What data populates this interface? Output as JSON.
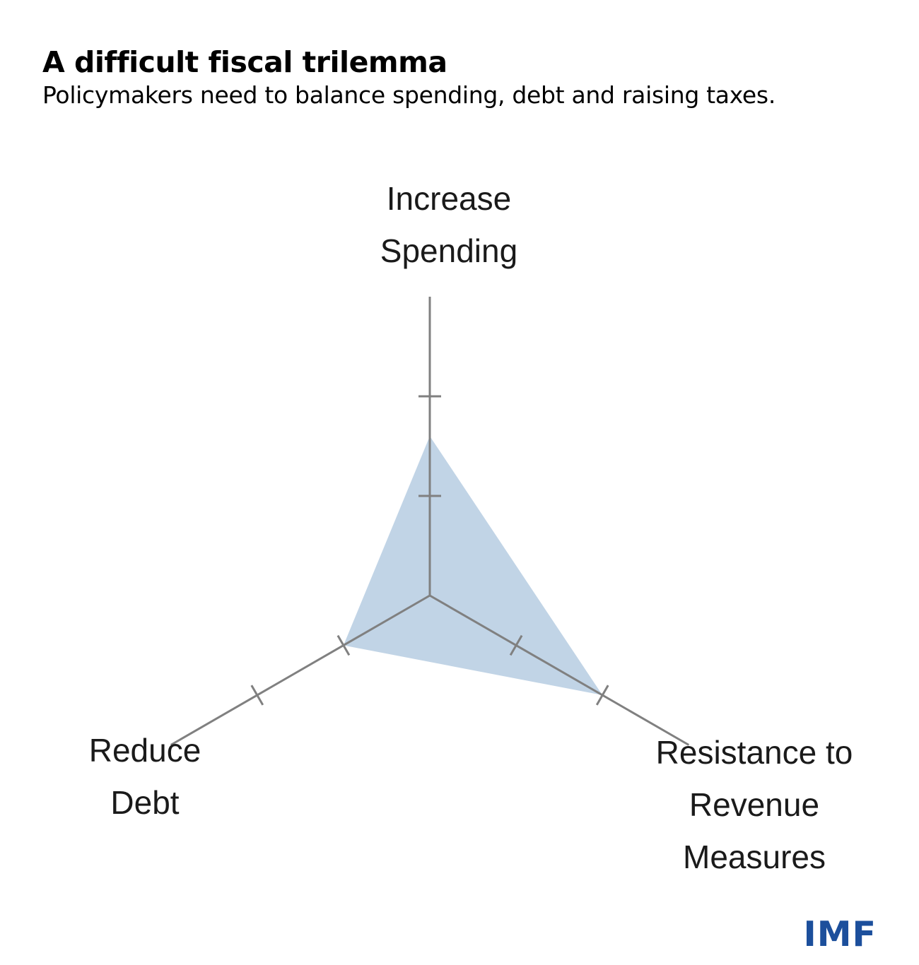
{
  "header": {
    "title": "A difficult fiscal trilemma",
    "subtitle": "Policymakers need to balance spending, debt and raising taxes."
  },
  "diagram": {
    "type": "radar",
    "axes": [
      {
        "id": "spending",
        "label_lines": [
          "Increase",
          "Spending"
        ],
        "value": 1.6
      },
      {
        "id": "revenue",
        "label_lines": [
          "Resistance to",
          "Revenue",
          "Measures"
        ],
        "value": 2.0
      },
      {
        "id": "debt",
        "label_lines": [
          "Reduce",
          "Debt"
        ],
        "value": 1.0
      }
    ],
    "max_value": 3,
    "tick_values": [
      1,
      2
    ],
    "fill_color": "#c1d4e6",
    "axis_color": "#808080"
  },
  "brand": {
    "logo_text": "IMF",
    "color": "#1c4f9c"
  }
}
